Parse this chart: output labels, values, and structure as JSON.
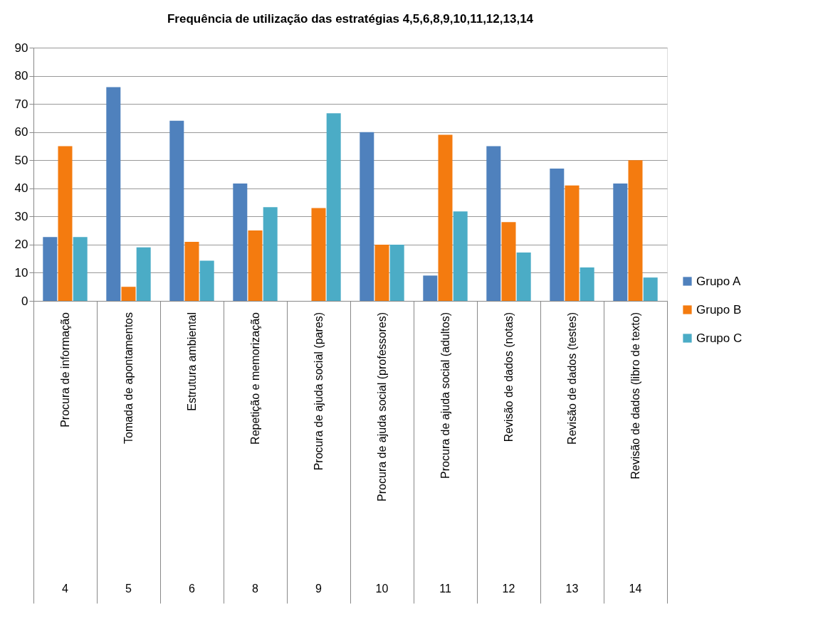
{
  "chart_data": {
    "type": "bar",
    "title": "Frequência de utilização das estratégias 4,5,6,8,9,10,11,12,13,14",
    "categories": [
      "Procura de informação",
      "Tomada de apontamentos",
      "Estrutura ambiental",
      "Repetição e memorização",
      "Procura de ajuda social (pares)",
      "Procura de ajuda social (professores)",
      "Procura de ajuda social (adultos)",
      "Revisão de dados (notas)",
      "Revisão de dados (testes)",
      "Revisão de dados (libro de texto)"
    ],
    "annotations": [
      "4",
      "5",
      "6",
      "8",
      "9",
      "10",
      "11",
      "12",
      "13",
      "14"
    ],
    "series": [
      {
        "name": "Grupo A",
        "color": "#4f81bd",
        "values": [
          22.7,
          76,
          64,
          41.7,
          0,
          60,
          9,
          55,
          47,
          41.7
        ]
      },
      {
        "name": "Grupo B",
        "color": "#f47b0f",
        "values": [
          55,
          5,
          21,
          25,
          33,
          20,
          59,
          28,
          41,
          50
        ]
      },
      {
        "name": "Grupo C",
        "color": "#4bacc6",
        "values": [
          22.7,
          19,
          14.3,
          33.3,
          66.7,
          20,
          31.8,
          17.2,
          11.9,
          8.3
        ]
      }
    ],
    "ylim": [
      0,
      90
    ],
    "yticks": [
      0,
      10,
      20,
      30,
      40,
      50,
      60,
      70,
      80,
      90
    ],
    "grid": "y",
    "legend": "right"
  }
}
